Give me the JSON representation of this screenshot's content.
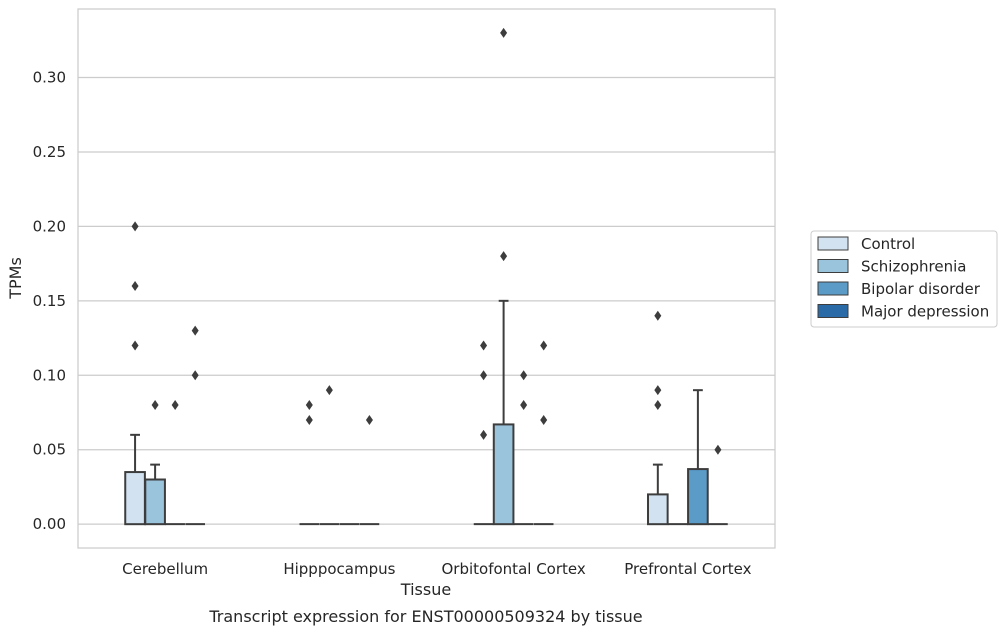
{
  "chart_data": {
    "type": "boxplot",
    "xlabel": "Tissue",
    "ylabel": "TPMs",
    "caption": "Transcript expression for ENST00000509324 by tissue",
    "categories": [
      "Cerebellum",
      "Hipppocampus",
      "Orbitofontal Cortex",
      "Prefrontal Cortex"
    ],
    "ylim": [
      -0.016,
      0.346
    ],
    "yticks": [
      0.0,
      0.05,
      0.1,
      0.15,
      0.2,
      0.25,
      0.3
    ],
    "ytick_labels": [
      "0.00",
      "0.05",
      "0.10",
      "0.15",
      "0.20",
      "0.25",
      "0.30"
    ],
    "grid": "horizontal",
    "legend_position": "right",
    "series": [
      {
        "name": "Control",
        "color": "#d2e2f0",
        "boxes": [
          {
            "q1": 0,
            "q3": 0.035,
            "whisker_high": 0.06,
            "outliers": [
              0.12,
              0.16,
              0.2
            ]
          },
          {
            "q1": 0,
            "q3": 0,
            "whisker_high": 0,
            "outliers": [
              0.07,
              0.08
            ]
          },
          {
            "q1": 0,
            "q3": 0,
            "whisker_high": 0,
            "outliers": [
              0.06,
              0.1,
              0.12
            ]
          },
          {
            "q1": 0,
            "q3": 0.02,
            "whisker_high": 0.04,
            "outliers": [
              0.08,
              0.09,
              0.14
            ]
          }
        ]
      },
      {
        "name": "Schizophrenia",
        "color": "#9ac3dc",
        "boxes": [
          {
            "q1": 0,
            "q3": 0.03,
            "whisker_high": 0.04,
            "outliers": [
              0.08
            ]
          },
          {
            "q1": 0,
            "q3": 0,
            "whisker_high": 0,
            "outliers": [
              0.09
            ]
          },
          {
            "q1": 0,
            "q3": 0.067,
            "whisker_high": 0.15,
            "outliers": [
              0.18,
              0.33
            ]
          },
          {
            "q1": 0,
            "q3": 0,
            "whisker_high": 0,
            "outliers": []
          }
        ]
      },
      {
        "name": "Bipolar disorder",
        "color": "#5a9bc8",
        "boxes": [
          {
            "q1": 0,
            "q3": 0,
            "whisker_high": 0,
            "outliers": [
              0.08
            ]
          },
          {
            "q1": 0,
            "q3": 0,
            "whisker_high": 0,
            "outliers": []
          },
          {
            "q1": 0,
            "q3": 0,
            "whisker_high": 0,
            "outliers": [
              0.08,
              0.1
            ]
          },
          {
            "q1": 0,
            "q3": 0.037,
            "whisker_high": 0.09,
            "outliers": []
          }
        ]
      },
      {
        "name": "Major depression",
        "color": "#2a6aa7",
        "boxes": [
          {
            "q1": 0,
            "q3": 0,
            "whisker_high": 0,
            "outliers": [
              0.1,
              0.13
            ]
          },
          {
            "q1": 0,
            "q3": 0,
            "whisker_high": 0,
            "outliers": [
              0.07
            ]
          },
          {
            "q1": 0,
            "q3": 0,
            "whisker_high": 0,
            "outliers": [
              0.07,
              0.12
            ]
          },
          {
            "q1": 0,
            "q3": 0,
            "whisker_high": 0,
            "outliers": [
              0.05
            ]
          }
        ]
      }
    ]
  }
}
